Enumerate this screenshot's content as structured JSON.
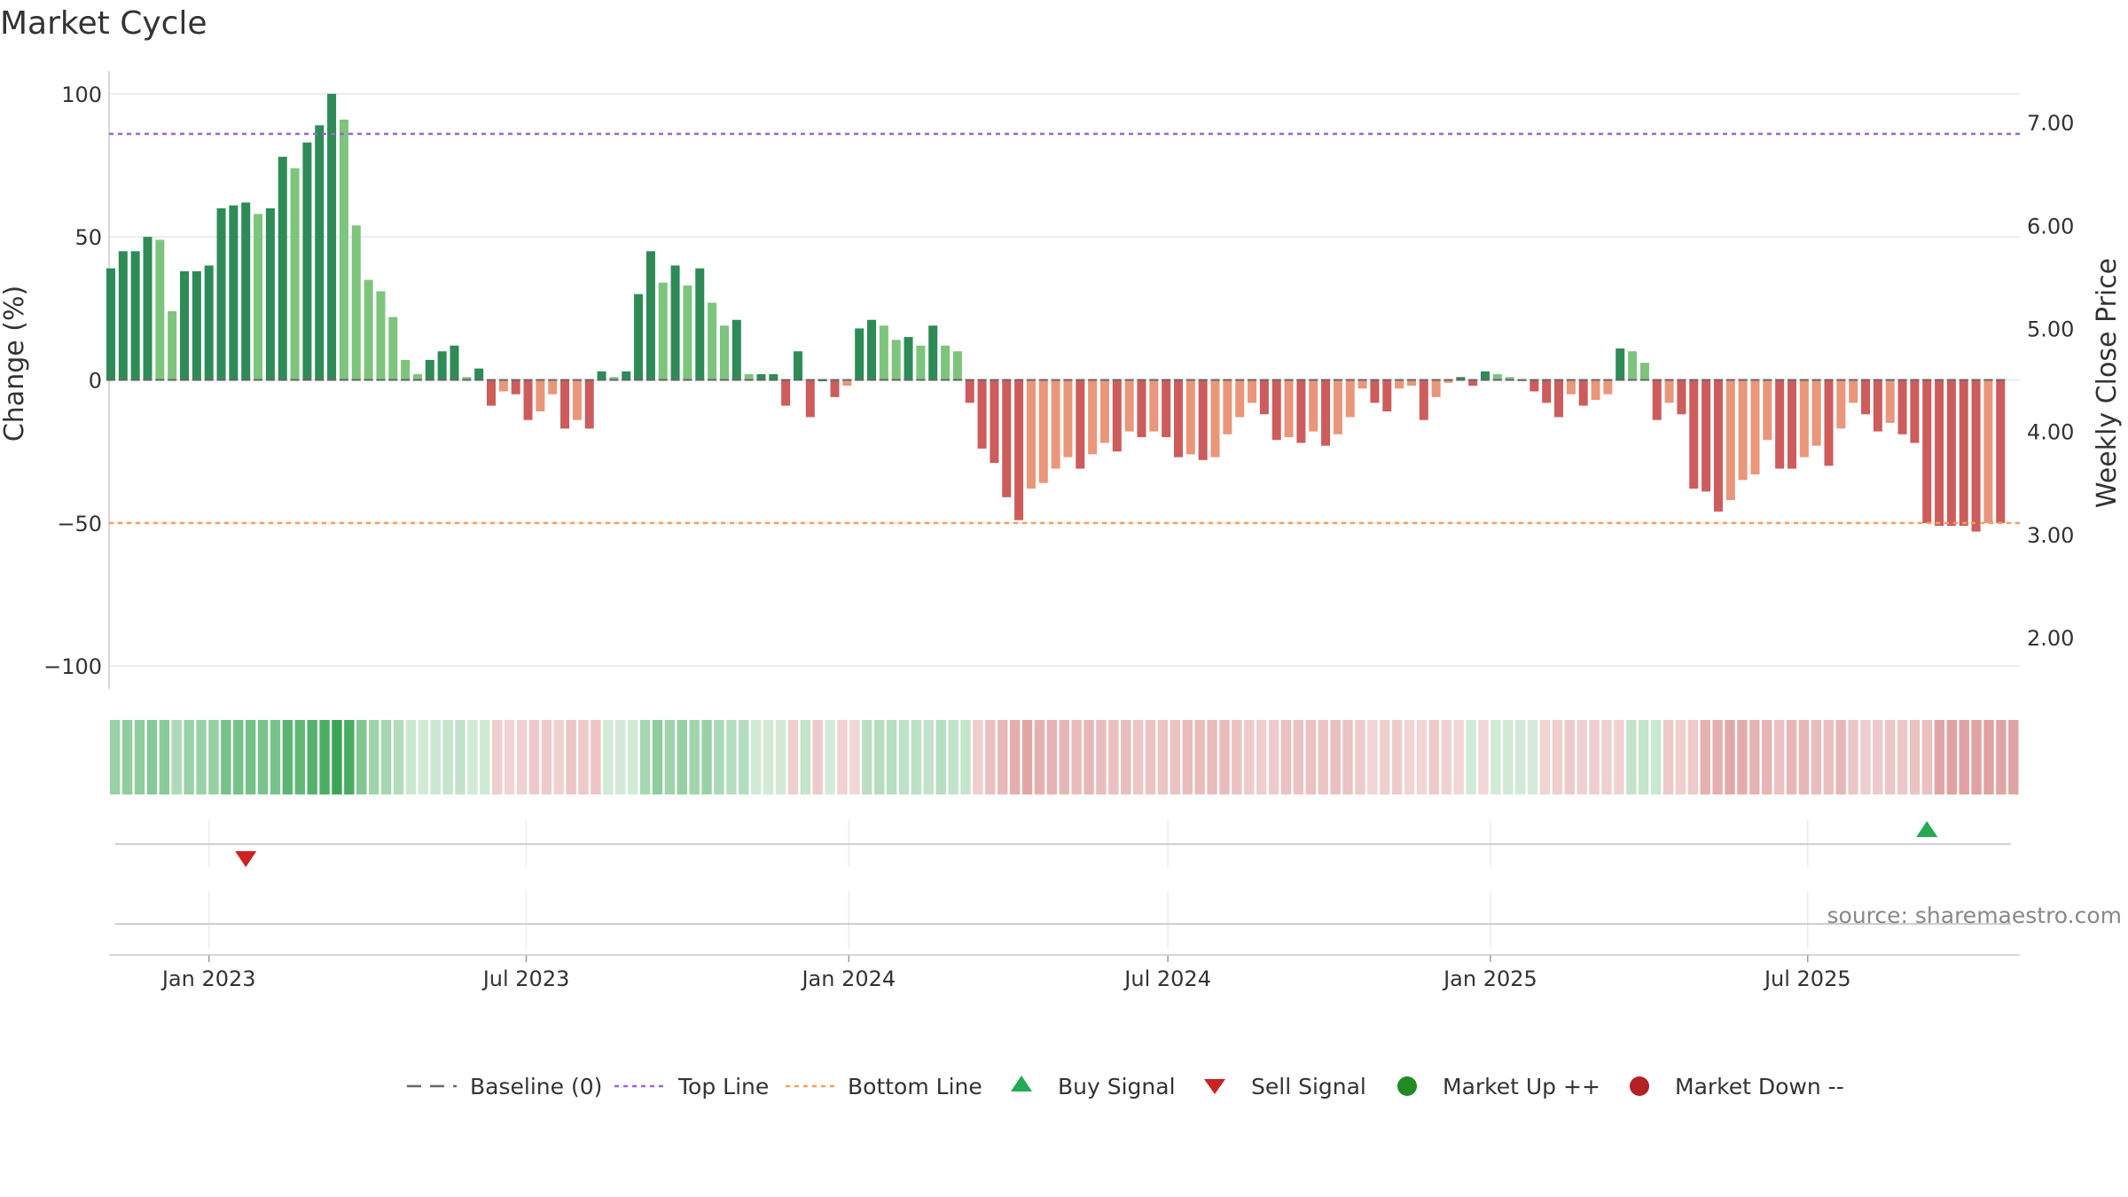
{
  "chart_data": {
    "type": "bar",
    "title": "Market Cycle",
    "ylabel_left": "Change (%)",
    "ylabel_right": "Weekly Close Price",
    "ylim_left": [
      -108,
      108
    ],
    "ylim_right": [
      1.5,
      7.5
    ],
    "yticks_left": [
      100,
      50,
      0,
      -50,
      -100
    ],
    "yticks_left_labels": [
      "100",
      "50",
      "0",
      "−50",
      "−100"
    ],
    "yticks_right": [
      7.0,
      6.0,
      5.0,
      4.0,
      3.0,
      2.0
    ],
    "yticks_right_labels": [
      "7.00",
      "6.00",
      "5.00",
      "4.00",
      "3.00",
      "2.00"
    ],
    "x_start": "2022-11-05",
    "x_end": "2025-10-30",
    "x_ticks": [
      {
        "label": "Jan 2023",
        "date": "2023-01-01"
      },
      {
        "label": "Jul 2023",
        "date": "2023-07-01"
      },
      {
        "label": "Jan 2024",
        "date": "2024-01-01"
      },
      {
        "label": "Jul 2024",
        "date": "2024-07-01"
      },
      {
        "label": "Jan 2025",
        "date": "2025-01-01"
      },
      {
        "label": "Jul 2025",
        "date": "2025-07-01"
      }
    ],
    "first_bar_date": "2022-11-06",
    "bar_interval_days": 7,
    "values": [
      39,
      45,
      45,
      50,
      49,
      24,
      38,
      38,
      40,
      60,
      61,
      62,
      58,
      60,
      78,
      74,
      83,
      89,
      100,
      91,
      54,
      35,
      31,
      22,
      7,
      2,
      7,
      10,
      12,
      1,
      4,
      -9,
      -4,
      -5,
      -14,
      -11,
      -5,
      -17,
      -14,
      -17,
      3,
      1,
      3,
      30,
      45,
      34,
      40,
      33,
      39,
      27,
      19,
      21,
      2,
      2,
      2,
      -9,
      10,
      -13,
      0,
      -6,
      -2,
      18,
      21,
      19,
      14,
      15,
      12,
      19,
      12,
      10,
      -8,
      -24,
      -29,
      -41,
      -49,
      -38,
      -36,
      -31,
      -27,
      -31,
      -26,
      -22,
      -25,
      -18,
      -20,
      -18,
      -20,
      -27,
      -26,
      -28,
      -27,
      -19,
      -13,
      -8,
      -12,
      -21,
      -20,
      -22,
      -18,
      -23,
      -19,
      -13,
      -3,
      -8,
      -11,
      -3,
      -2,
      -14,
      -6,
      -1,
      1,
      -2,
      3,
      2,
      1,
      0,
      -4,
      -8,
      -13,
      -5,
      -9,
      -7,
      -5,
      11,
      10,
      6,
      -14,
      -8,
      -12,
      -38,
      -39,
      -46,
      -42,
      -35,
      -33,
      -21,
      -31,
      -31,
      -27,
      -23,
      -30,
      -17,
      -8,
      -12,
      -18,
      -15,
      -19,
      -22,
      -50,
      -51,
      -51,
      -51,
      -53,
      -50,
      -50
    ],
    "top_line": 86,
    "bottom_line": -50,
    "baseline": 0,
    "buy_signals": [
      "2025-09-07"
    ],
    "sell_signals": [
      "2023-01-22"
    ],
    "legend": [
      "Baseline (0)",
      "Top Line",
      "Bottom Line",
      "Buy Signal",
      "Sell Signal",
      "Market Up ++",
      "Market Down --"
    ],
    "legend_placement": "bottom-center",
    "grid": true
  },
  "colors": {
    "up_strong": "#2e8b57",
    "up_weak": "#7dc47d",
    "down_strong": "#cd5c5c",
    "down_weak": "#e9967a",
    "top_line": "#9966cc",
    "bottom_line": "#f0a060",
    "baseline": "#666666",
    "buy": "#22aa55",
    "sell": "#cc2222",
    "market_up": "#228b22",
    "market_down": "#b22222"
  },
  "source": "source: sharemaestro.com"
}
